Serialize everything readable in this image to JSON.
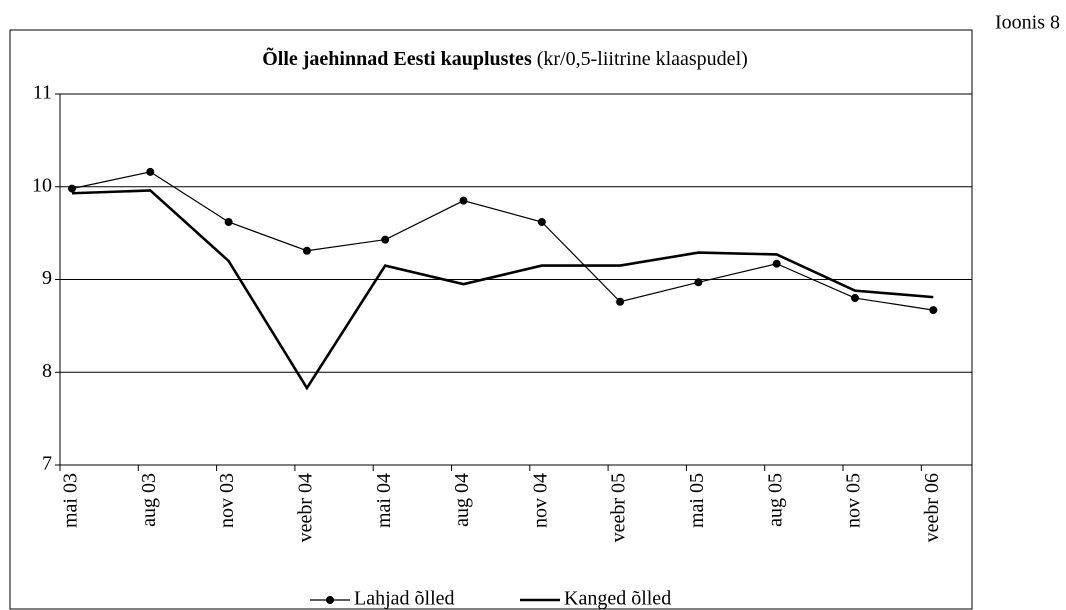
{
  "figure_label": "Ioonis 8",
  "chart_data": {
    "type": "line",
    "title": "Õlle jaehinnad Eesti kauplustes",
    "subtitle": "(kr/0,5-liitrine klaaspudel)",
    "categories": [
      "mai 03",
      "aug 03",
      "nov 03",
      "veebr 04",
      "mai 04",
      "aug 04",
      "nov 04",
      "veebr 05",
      "mai 05",
      "aug 05",
      "nov 05",
      "veebr 06"
    ],
    "series": [
      {
        "name": "Lahjad õlled",
        "color": "#000000",
        "marker": true,
        "values": [
          9.98,
          10.16,
          9.62,
          9.31,
          9.43,
          9.85,
          9.62,
          8.76,
          8.97,
          9.17,
          8.8,
          8.67
        ]
      },
      {
        "name": "Kanged õlled",
        "color": "#000000",
        "marker": false,
        "values": [
          9.93,
          9.96,
          9.2,
          7.83,
          9.15,
          8.95,
          9.15,
          9.15,
          9.29,
          9.27,
          8.88,
          8.81
        ]
      }
    ],
    "ylim": [
      7,
      11
    ],
    "yticks": [
      7,
      8,
      9,
      10,
      11
    ],
    "grid": true,
    "legend": "bottom"
  }
}
